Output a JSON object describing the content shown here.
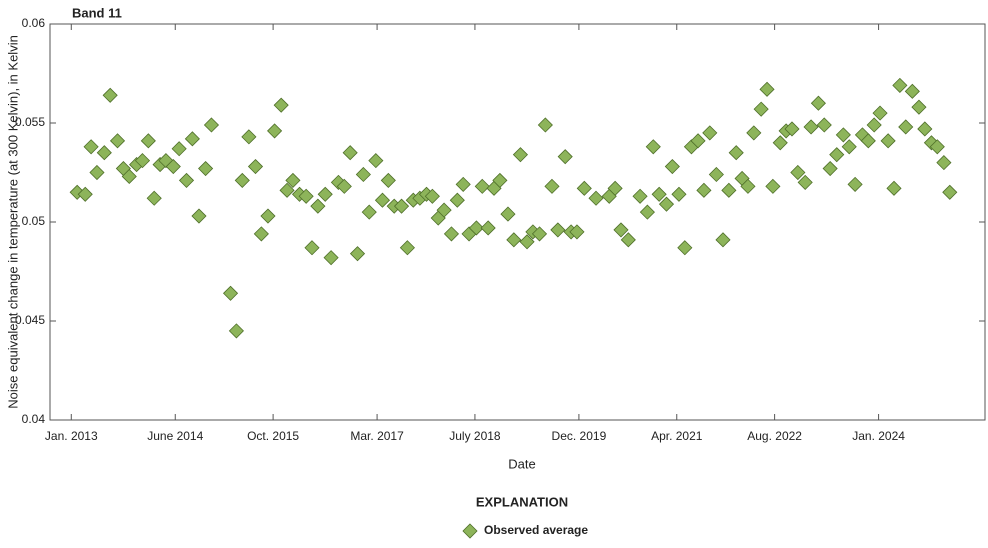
{
  "chart_data": {
    "type": "scatter",
    "title": "Band 11",
    "x_label": "Date",
    "y_label": "Noise equivalent change in temperature (at 300 Kelvin), in Kelvin",
    "legend_title": "EXPLANATION",
    "legend_position": "bottom",
    "xlim": [
      2012.71,
      2025.45
    ],
    "ylim": [
      0.04,
      0.06
    ],
    "xticks": [
      {
        "value": 2013.0,
        "label": "Jan. 2013"
      },
      {
        "value": 2014.4167,
        "label": "June 2014"
      },
      {
        "value": 2015.75,
        "label": "Oct. 2015"
      },
      {
        "value": 2017.1667,
        "label": "Mar. 2017"
      },
      {
        "value": 2018.5,
        "label": "July 2018"
      },
      {
        "value": 2019.9167,
        "label": "Dec. 2019"
      },
      {
        "value": 2021.25,
        "label": "Apr. 2021"
      },
      {
        "value": 2022.5833,
        "label": "Aug. 2022"
      },
      {
        "value": 2024.0,
        "label": "Jan. 2024"
      }
    ],
    "yticks": [
      0.04,
      0.045,
      0.05,
      0.055,
      0.06
    ],
    "x": [
      2013.08,
      2013.19,
      2013.27,
      2013.35,
      2013.45,
      2013.53,
      2013.63,
      2013.71,
      2013.79,
      2013.89,
      2013.97,
      2014.05,
      2014.13,
      2014.21,
      2014.29,
      2014.39,
      2014.47,
      2014.57,
      2014.65,
      2014.74,
      2014.83,
      2014.91,
      2015.17,
      2015.25,
      2015.33,
      2015.42,
      2015.51,
      2015.59,
      2015.68,
      2015.77,
      2015.86,
      2015.94,
      2016.02,
      2016.11,
      2016.2,
      2016.28,
      2016.36,
      2016.46,
      2016.54,
      2016.64,
      2016.72,
      2016.8,
      2016.9,
      2016.98,
      2017.06,
      2017.15,
      2017.24,
      2017.32,
      2017.4,
      2017.5,
      2017.58,
      2017.66,
      2017.75,
      2017.84,
      2017.92,
      2018.0,
      2018.08,
      2018.18,
      2018.26,
      2018.34,
      2018.42,
      2018.52,
      2018.6,
      2018.68,
      2018.76,
      2018.84,
      2018.95,
      2019.03,
      2019.12,
      2019.21,
      2019.29,
      2019.38,
      2019.46,
      2019.55,
      2019.63,
      2019.73,
      2019.81,
      2019.89,
      2019.99,
      2020.15,
      2020.33,
      2020.41,
      2020.49,
      2020.59,
      2020.75,
      2020.85,
      2020.93,
      2021.01,
      2021.11,
      2021.19,
      2021.28,
      2021.36,
      2021.45,
      2021.54,
      2021.62,
      2021.7,
      2021.79,
      2021.88,
      2021.96,
      2022.06,
      2022.14,
      2022.22,
      2022.3,
      2022.4,
      2022.48,
      2022.56,
      2022.66,
      2022.74,
      2022.82,
      2022.9,
      2023.0,
      2023.08,
      2023.18,
      2023.26,
      2023.34,
      2023.43,
      2023.52,
      2023.6,
      2023.68,
      2023.78,
      2023.86,
      2023.94,
      2024.02,
      2024.13,
      2024.21,
      2024.29,
      2024.37,
      2024.46,
      2024.55,
      2024.63,
      2024.72,
      2024.8,
      2024.89,
      2024.97
    ],
    "series": [
      {
        "name": "Observed average",
        "color": "#8db45a",
        "values": [
          0.0515,
          0.0514,
          0.0538,
          0.0525,
          0.0535,
          0.0564,
          0.0541,
          0.0527,
          0.0523,
          0.0529,
          0.0531,
          0.0541,
          0.0512,
          0.0529,
          0.0531,
          0.0528,
          0.0537,
          0.0521,
          0.0542,
          0.0503,
          0.0527,
          0.0549,
          0.0464,
          0.0445,
          0.0521,
          0.0543,
          0.0528,
          0.0494,
          0.0503,
          0.0546,
          0.0559,
          0.0516,
          0.0521,
          0.0514,
          0.0513,
          0.0487,
          0.0508,
          0.0514,
          0.0482,
          0.052,
          0.0518,
          0.0535,
          0.0484,
          0.0524,
          0.0505,
          0.0531,
          0.0511,
          0.0521,
          0.0508,
          0.0508,
          0.0487,
          0.0511,
          0.0512,
          0.0514,
          0.0513,
          0.0502,
          0.0506,
          0.0494,
          0.0511,
          0.0519,
          0.0494,
          0.0497,
          0.0518,
          0.0497,
          0.0517,
          0.0521,
          0.0504,
          0.0491,
          0.0534,
          0.049,
          0.0495,
          0.0494,
          0.0549,
          0.0518,
          0.0496,
          0.0533,
          0.0495,
          0.0495,
          0.0517,
          0.0512,
          0.0513,
          0.0517,
          0.0496,
          0.0491,
          0.0513,
          0.0505,
          0.0538,
          0.0514,
          0.0509,
          0.0528,
          0.0514,
          0.0487,
          0.0538,
          0.0541,
          0.0516,
          0.0545,
          0.0524,
          0.0491,
          0.0516,
          0.0535,
          0.0522,
          0.0518,
          0.0545,
          0.0557,
          0.0567,
          0.0518,
          0.054,
          0.0546,
          0.0547,
          0.0525,
          0.052,
          0.0548,
          0.056,
          0.0549,
          0.0527,
          0.0534,
          0.0544,
          0.0538,
          0.0519,
          0.0544,
          0.0541,
          0.0549,
          0.0555,
          0.0541,
          0.0517,
          0.0569,
          0.0548,
          0.0566,
          0.0558,
          0.0547,
          0.054,
          0.0538,
          0.053,
          0.0515
        ]
      }
    ]
  }
}
